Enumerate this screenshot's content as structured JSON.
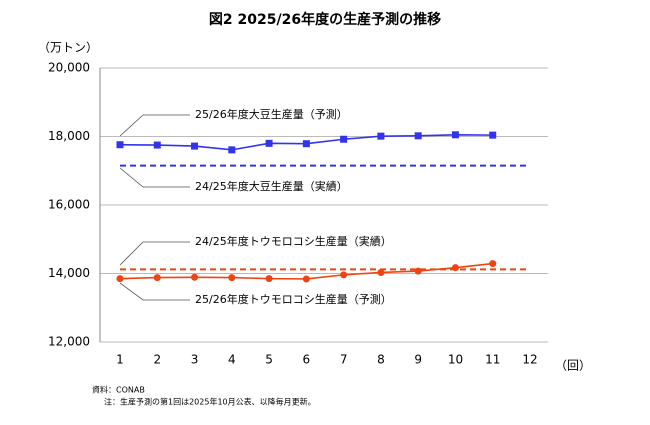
{
  "chart_data": {
    "type": "line",
    "title": "図2 2025/26年度の生産予測の推移",
    "y_label": "（万トン）",
    "x_label": "（回）",
    "categories": [
      "1",
      "2",
      "3",
      "4",
      "5",
      "6",
      "7",
      "8",
      "9",
      "10",
      "11",
      "12"
    ],
    "ylim": [
      12000,
      20000
    ],
    "yticks": [
      {
        "value": 12000,
        "label": "12,000"
      },
      {
        "value": 14000,
        "label": "14,000"
      },
      {
        "value": 16000,
        "label": "16,000"
      },
      {
        "value": 18000,
        "label": "18,000"
      },
      {
        "value": 20000,
        "label": "20,000"
      }
    ],
    "grid": true,
    "series": [
      {
        "name": "25/26年度大豆生産量（予測）",
        "color": "#3333ee",
        "marker": "square",
        "dashed": false,
        "values": [
          17760,
          17750,
          17720,
          17610,
          17800,
          17790,
          17920,
          18010,
          18020,
          18050,
          18040,
          null
        ]
      },
      {
        "name": "24/25年度大豆生産量（実績）",
        "color": "#3333ee",
        "marker": null,
        "dashed": true,
        "values": [
          17150,
          17150,
          17150,
          17150,
          17150,
          17150,
          17150,
          17150,
          17150,
          17150,
          17150,
          17150
        ]
      },
      {
        "name": "24/25年度トウモロコシ生産量（実績）",
        "color": "#ee4411",
        "marker": null,
        "dashed": true,
        "values": [
          14120,
          14120,
          14120,
          14120,
          14120,
          14120,
          14120,
          14120,
          14120,
          14120,
          14120,
          14120
        ]
      },
      {
        "name": "25/26年度トウモロコシ生産量（予測）",
        "color": "#ee4411",
        "marker": "circle",
        "dashed": false,
        "values": [
          13850,
          13880,
          13890,
          13880,
          13850,
          13840,
          13960,
          14030,
          14070,
          14170,
          14290,
          null
        ]
      }
    ],
    "notes": [
      "資料：CONAB",
      "注：生産予測の第1回は2025年10月公表、以降毎月更新。"
    ]
  }
}
